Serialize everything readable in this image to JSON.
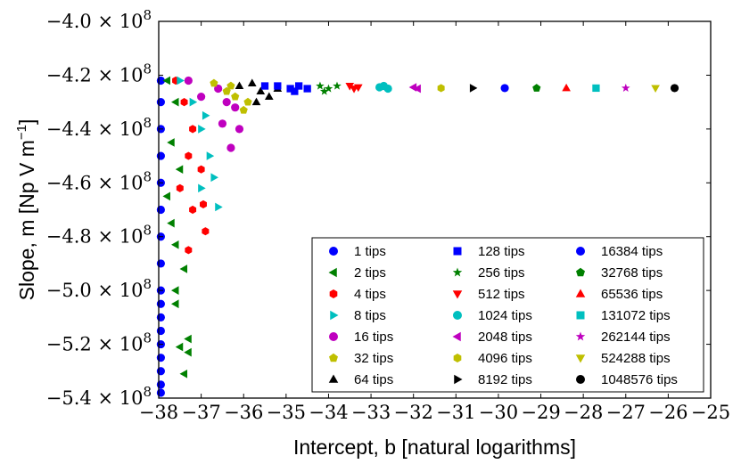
{
  "chart_data": {
    "type": "scatter",
    "title": "",
    "xlabel": "Intercept, b [natural logarithms]",
    "ylabel": "Slope, m [Np V m",
    "ylabel_superscript": "−1",
    "ylabel_tail": "]",
    "xlim": [
      -38,
      -25
    ],
    "ylim": [
      -5.4,
      -4.0
    ],
    "y_scale_unit": "× 10",
    "y_exponent": "8",
    "x_ticks": [
      -38,
      -37,
      -36,
      -35,
      -34,
      -33,
      -32,
      -31,
      -30,
      -29,
      -28,
      -27,
      -26,
      -25
    ],
    "x_tick_labels": [
      "−38",
      "−37",
      "−36",
      "−35",
      "−34",
      "−33",
      "−32",
      "−31",
      "−30",
      "−29",
      "−28",
      "−27",
      "−26",
      "−25"
    ],
    "y_ticks": [
      -4.0,
      -4.2,
      -4.4,
      -4.6,
      -4.8,
      -5.0,
      -5.2,
      -5.4
    ],
    "y_tick_labels": [
      "−4.0",
      "−4.2",
      "−4.4",
      "−4.6",
      "−4.8",
      "−5.0",
      "−5.2",
      "−5.4"
    ],
    "legend_position": "lower-right",
    "legend_columns": 3,
    "series": [
      {
        "name": "1 tips",
        "color": "#0000ff",
        "marker": "circle",
        "points": [
          [
            -37.95,
            -4.22
          ],
          [
            -37.95,
            -4.3
          ],
          [
            -37.95,
            -4.4
          ],
          [
            -37.95,
            -4.5
          ],
          [
            -37.95,
            -4.6
          ],
          [
            -37.95,
            -4.7
          ],
          [
            -37.95,
            -4.8
          ],
          [
            -37.95,
            -4.9
          ],
          [
            -37.95,
            -5.0
          ],
          [
            -37.95,
            -5.05
          ],
          [
            -37.95,
            -5.1
          ],
          [
            -37.95,
            -5.15
          ],
          [
            -37.95,
            -5.2
          ],
          [
            -37.95,
            -5.25
          ],
          [
            -37.95,
            -5.3
          ],
          [
            -37.95,
            -5.35
          ],
          [
            -37.95,
            -5.38
          ]
        ]
      },
      {
        "name": "2 tips",
        "color": "#008000",
        "marker": "triangle-left",
        "points": [
          [
            -37.8,
            -4.22
          ],
          [
            -37.6,
            -4.3
          ],
          [
            -37.7,
            -4.45
          ],
          [
            -37.5,
            -4.55
          ],
          [
            -37.8,
            -4.65
          ],
          [
            -37.7,
            -4.75
          ],
          [
            -37.6,
            -4.83
          ],
          [
            -37.4,
            -4.92
          ],
          [
            -37.6,
            -5.0
          ],
          [
            -37.6,
            -5.05
          ],
          [
            -37.3,
            -5.18
          ],
          [
            -37.5,
            -5.21
          ],
          [
            -37.4,
            -5.31
          ],
          [
            -37.3,
            -5.23
          ]
        ]
      },
      {
        "name": "4 tips",
        "color": "#ff0000",
        "marker": "hexagon",
        "points": [
          [
            -37.6,
            -4.22
          ],
          [
            -37.4,
            -4.3
          ],
          [
            -37.2,
            -4.4
          ],
          [
            -37.3,
            -4.5
          ],
          [
            -37.0,
            -4.55
          ],
          [
            -37.5,
            -4.62
          ],
          [
            -37.2,
            -4.7
          ],
          [
            -36.9,
            -4.78
          ],
          [
            -37.3,
            -4.85
          ],
          [
            -36.95,
            -4.68
          ]
        ]
      },
      {
        "name": "8 tips",
        "color": "#00bfbf",
        "marker": "triangle-right",
        "points": [
          [
            -37.5,
            -4.22
          ],
          [
            -37.2,
            -4.3
          ],
          [
            -37.0,
            -4.4
          ],
          [
            -36.8,
            -4.5
          ],
          [
            -36.7,
            -4.58
          ],
          [
            -36.6,
            -4.69
          ],
          [
            -37.0,
            -4.62
          ],
          [
            -36.9,
            -4.35
          ]
        ]
      },
      {
        "name": "16 tips",
        "color": "#bf00bf",
        "marker": "circle",
        "points": [
          [
            -37.3,
            -4.22
          ],
          [
            -37.0,
            -4.28
          ],
          [
            -36.6,
            -4.25
          ],
          [
            -36.4,
            -4.3
          ],
          [
            -36.2,
            -4.32
          ],
          [
            -36.1,
            -4.4
          ],
          [
            -36.3,
            -4.47
          ],
          [
            -36.5,
            -4.38
          ]
        ]
      },
      {
        "name": "32 tips",
        "color": "#bfbf00",
        "marker": "pentagon",
        "points": [
          [
            -36.7,
            -4.23
          ],
          [
            -36.4,
            -4.26
          ],
          [
            -36.2,
            -4.28
          ],
          [
            -35.9,
            -4.3
          ],
          [
            -36.0,
            -4.33
          ],
          [
            -36.3,
            -4.24
          ]
        ]
      },
      {
        "name": "64 tips",
        "color": "#000000",
        "marker": "triangle-up",
        "points": [
          [
            -36.1,
            -4.24
          ],
          [
            -35.8,
            -4.23
          ],
          [
            -35.6,
            -4.26
          ],
          [
            -35.4,
            -4.28
          ],
          [
            -35.7,
            -4.3
          ],
          [
            -35.2,
            -4.25
          ]
        ]
      },
      {
        "name": "128 tips",
        "color": "#0000ff",
        "marker": "square",
        "points": [
          [
            -35.5,
            -4.24
          ],
          [
            -35.2,
            -4.24
          ],
          [
            -34.9,
            -4.25
          ],
          [
            -34.7,
            -4.24
          ],
          [
            -34.5,
            -4.25
          ],
          [
            -34.8,
            -4.26
          ]
        ]
      },
      {
        "name": "256 tips",
        "color": "#008000",
        "marker": "star",
        "points": [
          [
            -34.2,
            -4.24
          ],
          [
            -34.0,
            -4.25
          ],
          [
            -33.8,
            -4.24
          ],
          [
            -34.1,
            -4.26
          ]
        ]
      },
      {
        "name": "512 tips",
        "color": "#ff0000",
        "marker": "triangle-down",
        "points": [
          [
            -33.5,
            -4.24
          ],
          [
            -33.3,
            -4.245
          ],
          [
            -33.4,
            -4.25
          ]
        ]
      },
      {
        "name": "1024 tips",
        "color": "#00bfbf",
        "marker": "circle",
        "points": [
          [
            -32.8,
            -4.245
          ],
          [
            -32.6,
            -4.25
          ],
          [
            -32.7,
            -4.24
          ]
        ]
      },
      {
        "name": "2048 tips",
        "color": "#bf00bf",
        "marker": "triangle-left",
        "points": [
          [
            -32.0,
            -4.245
          ],
          [
            -31.9,
            -4.25
          ]
        ]
      },
      {
        "name": "4096 tips",
        "color": "#bfbf00",
        "marker": "hexagon",
        "points": [
          [
            -31.35,
            -4.248
          ]
        ]
      },
      {
        "name": "8192 tips",
        "color": "#000000",
        "marker": "triangle-right",
        "points": [
          [
            -30.6,
            -4.248
          ]
        ]
      },
      {
        "name": "16384 tips",
        "color": "#0000ff",
        "marker": "circle",
        "points": [
          [
            -29.85,
            -4.248
          ]
        ]
      },
      {
        "name": "32768 tips",
        "color": "#008000",
        "marker": "pentagon",
        "points": [
          [
            -29.1,
            -4.248
          ]
        ]
      },
      {
        "name": "65536 tips",
        "color": "#ff0000",
        "marker": "triangle-up",
        "points": [
          [
            -28.4,
            -4.248
          ]
        ]
      },
      {
        "name": "131072 tips",
        "color": "#00bfbf",
        "marker": "square",
        "points": [
          [
            -27.7,
            -4.248
          ]
        ]
      },
      {
        "name": "262144 tips",
        "color": "#bf00bf",
        "marker": "star",
        "points": [
          [
            -27.0,
            -4.248
          ]
        ]
      },
      {
        "name": "524288 tips",
        "color": "#bfbf00",
        "marker": "triangle-down",
        "points": [
          [
            -26.3,
            -4.248
          ]
        ]
      },
      {
        "name": "1048576 tips",
        "color": "#000000",
        "marker": "circle",
        "points": [
          [
            -25.85,
            -4.248
          ]
        ]
      }
    ]
  }
}
